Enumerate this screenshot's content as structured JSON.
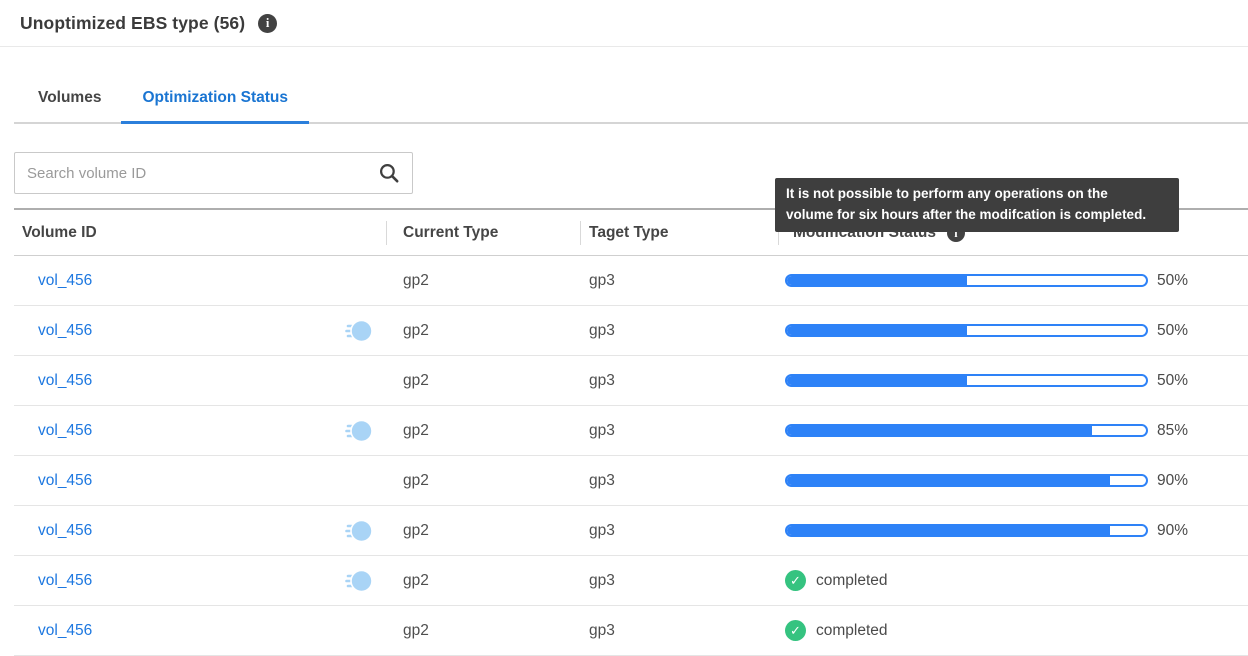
{
  "header": {
    "title": "Unoptimized EBS type (56)"
  },
  "tabs": [
    {
      "label": "Volumes",
      "active": false
    },
    {
      "label": "Optimization Status",
      "active": true
    }
  ],
  "search": {
    "placeholder": "Search volume ID"
  },
  "tooltip": {
    "text": "It is not possible to perform any operations on the volume for six hours after the modifcation is completed.",
    "lines": [
      "It is not possible to perform any operations on the",
      "volume for six hours after the modifcation is completed."
    ]
  },
  "table": {
    "columns": [
      "Volume ID",
      "Current Type",
      "Taget Type",
      "Modification Status"
    ],
    "rows": [
      {
        "volume_id": "vol_456",
        "fast_icon": false,
        "current_type": "gp2",
        "target_type": "gp3",
        "status": "progress",
        "progress_pct": 50,
        "progress_label": "50%"
      },
      {
        "volume_id": "vol_456",
        "fast_icon": true,
        "current_type": "gp2",
        "target_type": "gp3",
        "status": "progress",
        "progress_pct": 50,
        "progress_label": "50%"
      },
      {
        "volume_id": "vol_456",
        "fast_icon": false,
        "current_type": "gp2",
        "target_type": "gp3",
        "status": "progress",
        "progress_pct": 50,
        "progress_label": "50%"
      },
      {
        "volume_id": "vol_456",
        "fast_icon": true,
        "current_type": "gp2",
        "target_type": "gp3",
        "status": "progress",
        "progress_pct": 85,
        "progress_label": "85%"
      },
      {
        "volume_id": "vol_456",
        "fast_icon": false,
        "current_type": "gp2",
        "target_type": "gp3",
        "status": "progress",
        "progress_pct": 90,
        "progress_label": "90%"
      },
      {
        "volume_id": "vol_456",
        "fast_icon": true,
        "current_type": "gp2",
        "target_type": "gp3",
        "status": "progress",
        "progress_pct": 90,
        "progress_label": "90%"
      },
      {
        "volume_id": "vol_456",
        "fast_icon": true,
        "current_type": "gp2",
        "target_type": "gp3",
        "status": "completed",
        "status_label": "completed"
      },
      {
        "volume_id": "vol_456",
        "fast_icon": false,
        "current_type": "gp2",
        "target_type": "gp3",
        "status": "completed",
        "status_label": "completed"
      }
    ]
  },
  "icons": {
    "info_glyph": "i",
    "check_glyph": "✓",
    "fast_snapshot": "fast-snapshot-icon",
    "search": "search-icon"
  },
  "colors": {
    "accent_blue": "#1a75d2",
    "link_blue": "#1e78e0",
    "progress_blue": "#2e82f7",
    "success_green": "#35c380",
    "fast_icon_blue": "#a9d4f6",
    "tooltip_bg": "#3e3e3e",
    "info_badge_bg": "#424242"
  }
}
